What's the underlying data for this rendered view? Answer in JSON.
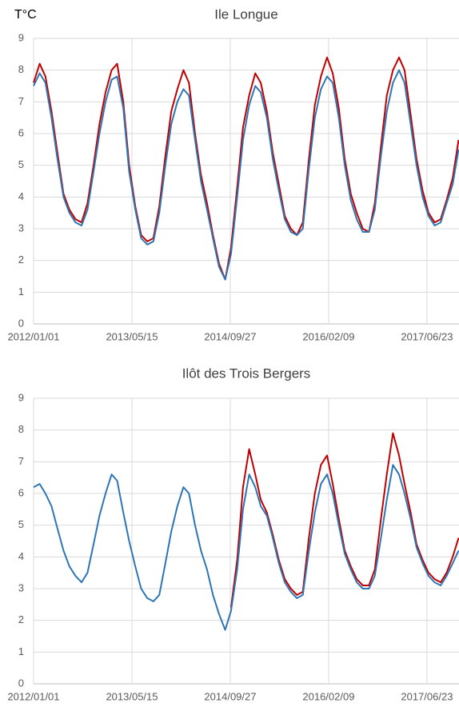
{
  "chart_data": [
    {
      "type": "line",
      "title": "Ile Longue",
      "ylabel": "T°C",
      "x": [
        "2012/01/01",
        "2012/02/01",
        "2012/03/01",
        "2012/04/01",
        "2012/05/01",
        "2012/06/01",
        "2012/07/01",
        "2012/08/01",
        "2012/09/01",
        "2012/10/01",
        "2012/11/01",
        "2012/12/01",
        "2013/01/01",
        "2013/02/01",
        "2013/03/01",
        "2013/04/01",
        "2013/05/01",
        "2013/06/01",
        "2013/07/01",
        "2013/08/01",
        "2013/09/01",
        "2013/10/01",
        "2013/11/01",
        "2013/12/01",
        "2014/01/01",
        "2014/02/01",
        "2014/03/01",
        "2014/04/01",
        "2014/05/01",
        "2014/06/01",
        "2014/07/01",
        "2014/08/01",
        "2014/09/01",
        "2014/10/01",
        "2014/11/01",
        "2014/12/01",
        "2015/01/01",
        "2015/02/01",
        "2015/03/01",
        "2015/04/01",
        "2015/05/01",
        "2015/06/01",
        "2015/07/01",
        "2015/08/01",
        "2015/09/01",
        "2015/10/01",
        "2015/11/01",
        "2015/12/01",
        "2016/01/01",
        "2016/02/01",
        "2016/03/01",
        "2016/04/01",
        "2016/05/01",
        "2016/06/01",
        "2016/07/01",
        "2016/08/01",
        "2016/09/01",
        "2016/10/01",
        "2016/11/01",
        "2016/12/01",
        "2017/01/01",
        "2017/02/01",
        "2017/03/01",
        "2017/04/01",
        "2017/05/01",
        "2017/06/01",
        "2017/07/01",
        "2017/08/01",
        "2017/09/01",
        "2017/10/01",
        "2017/11/01",
        "2017/12/01"
      ],
      "series": [
        {
          "color": "#c00000",
          "values": [
            7.6,
            8.2,
            7.8,
            6.7,
            5.4,
            4.1,
            3.6,
            3.3,
            3.2,
            3.8,
            5.0,
            6.3,
            7.3,
            8.0,
            8.2,
            7.0,
            5.0,
            3.7,
            2.8,
            2.6,
            2.7,
            3.7,
            5.3,
            6.7,
            7.4,
            8.0,
            7.6,
            6.0,
            4.7,
            3.8,
            2.8,
            1.9,
            1.4,
            2.4,
            4.3,
            6.2,
            7.2,
            7.9,
            7.6,
            6.7,
            5.4,
            4.4,
            3.4,
            3.0,
            2.8,
            3.2,
            5.2,
            6.9,
            7.8,
            8.4,
            7.9,
            6.8,
            5.2,
            4.1,
            3.5,
            3.0,
            2.9,
            3.8,
            5.6,
            7.2,
            8.0,
            8.4,
            8.0,
            6.6,
            5.2,
            4.2,
            3.5,
            3.2,
            3.3,
            3.9,
            4.6,
            5.8
          ]
        },
        {
          "color": "#2e75b6",
          "values": [
            7.5,
            7.9,
            7.6,
            6.5,
            5.2,
            4.0,
            3.5,
            3.2,
            3.1,
            3.6,
            4.8,
            6.0,
            7.0,
            7.7,
            7.8,
            6.8,
            4.8,
            3.6,
            2.7,
            2.5,
            2.6,
            3.5,
            5.0,
            6.3,
            7.0,
            7.4,
            7.2,
            5.8,
            4.5,
            3.6,
            2.7,
            1.8,
            1.4,
            2.2,
            4.0,
            5.8,
            6.9,
            7.5,
            7.3,
            6.5,
            5.2,
            4.2,
            3.3,
            2.9,
            2.8,
            3.0,
            4.9,
            6.5,
            7.4,
            7.8,
            7.6,
            6.5,
            5.0,
            3.9,
            3.3,
            2.9,
            2.9,
            3.6,
            5.3,
            6.7,
            7.6,
            8.0,
            7.6,
            6.3,
            5.0,
            4.0,
            3.4,
            3.1,
            3.2,
            3.8,
            4.4,
            5.5
          ]
        }
      ],
      "xlim": [
        "2012/01/01",
        "2017/12/03"
      ],
      "xticks": [
        "2012/01/01",
        "2013/05/15",
        "2014/09/27",
        "2016/02/09",
        "2017/06/23"
      ],
      "ylim": [
        0,
        9
      ],
      "yticks": [
        0,
        1,
        2,
        3,
        4,
        5,
        6,
        7,
        8,
        9
      ],
      "grid": true
    },
    {
      "type": "line",
      "title": "Ilôt des Trois Bergers",
      "x": [
        "2012/01/01",
        "2012/02/01",
        "2012/03/01",
        "2012/04/01",
        "2012/05/01",
        "2012/06/01",
        "2012/07/01",
        "2012/08/01",
        "2012/09/01",
        "2012/10/01",
        "2012/11/01",
        "2012/12/01",
        "2013/01/01",
        "2013/02/01",
        "2013/03/01",
        "2013/04/01",
        "2013/05/01",
        "2013/06/01",
        "2013/07/01",
        "2013/08/01",
        "2013/09/01",
        "2013/10/01",
        "2013/11/01",
        "2013/12/01",
        "2014/01/01",
        "2014/02/01",
        "2014/03/01",
        "2014/04/01",
        "2014/05/01",
        "2014/06/01",
        "2014/07/01",
        "2014/08/01",
        "2014/09/01",
        "2014/10/01",
        "2014/11/01",
        "2014/12/01",
        "2015/01/01",
        "2015/02/01",
        "2015/03/01",
        "2015/04/01",
        "2015/05/01",
        "2015/06/01",
        "2015/07/01",
        "2015/08/01",
        "2015/09/01",
        "2015/10/01",
        "2015/11/01",
        "2015/12/01",
        "2016/01/01",
        "2016/02/01",
        "2016/03/01",
        "2016/04/01",
        "2016/05/01",
        "2016/06/01",
        "2016/07/01",
        "2016/08/01",
        "2016/09/01",
        "2016/10/01",
        "2016/11/01",
        "2016/12/01",
        "2017/01/01",
        "2017/02/01",
        "2017/03/01",
        "2017/04/01",
        "2017/05/01",
        "2017/06/01",
        "2017/07/01",
        "2017/08/01",
        "2017/09/01",
        "2017/10/01",
        "2017/11/01",
        "2017/12/01"
      ],
      "series": [
        {
          "color": "#c00000",
          "values": [
            null,
            null,
            null,
            null,
            null,
            null,
            null,
            null,
            null,
            null,
            null,
            null,
            null,
            null,
            null,
            null,
            null,
            null,
            null,
            null,
            null,
            null,
            null,
            null,
            null,
            null,
            null,
            null,
            null,
            null,
            null,
            null,
            null,
            2.4,
            3.9,
            6.2,
            7.4,
            6.6,
            5.8,
            5.4,
            4.7,
            3.9,
            3.3,
            3.0,
            2.8,
            2.9,
            4.6,
            6.0,
            6.9,
            7.2,
            6.3,
            5.2,
            4.2,
            3.7,
            3.3,
            3.1,
            3.1,
            3.6,
            5.2,
            6.6,
            7.9,
            7.2,
            6.3,
            5.4,
            4.4,
            3.9,
            3.5,
            3.3,
            3.2,
            3.5,
            4.0,
            4.6
          ]
        },
        {
          "color": "#2e75b6",
          "values": [
            6.2,
            6.3,
            6.0,
            5.6,
            4.9,
            4.2,
            3.7,
            3.4,
            3.2,
            3.5,
            4.4,
            5.3,
            6.0,
            6.6,
            6.4,
            5.4,
            4.5,
            3.7,
            3.0,
            2.7,
            2.6,
            2.8,
            3.8,
            4.8,
            5.6,
            6.2,
            6.0,
            5.0,
            4.2,
            3.6,
            2.8,
            2.2,
            1.7,
            2.3,
            3.6,
            5.5,
            6.6,
            6.2,
            5.6,
            5.3,
            4.6,
            3.8,
            3.2,
            2.9,
            2.7,
            2.8,
            4.2,
            5.4,
            6.3,
            6.6,
            6.0,
            5.0,
            4.1,
            3.6,
            3.2,
            3.0,
            3.0,
            3.4,
            4.6,
            5.8,
            6.9,
            6.6,
            6.0,
            5.2,
            4.3,
            3.8,
            3.4,
            3.2,
            3.1,
            3.4,
            3.8,
            4.2
          ]
        }
      ],
      "xlim": [
        "2012/01/01",
        "2017/12/03"
      ],
      "xticks": [
        "2012/01/01",
        "2013/05/15",
        "2014/09/27",
        "2016/02/09",
        "2017/06/23"
      ],
      "ylim": [
        0,
        9
      ],
      "yticks": [
        0,
        1,
        2,
        3,
        4,
        5,
        6,
        7,
        8,
        9
      ],
      "grid": true
    }
  ]
}
